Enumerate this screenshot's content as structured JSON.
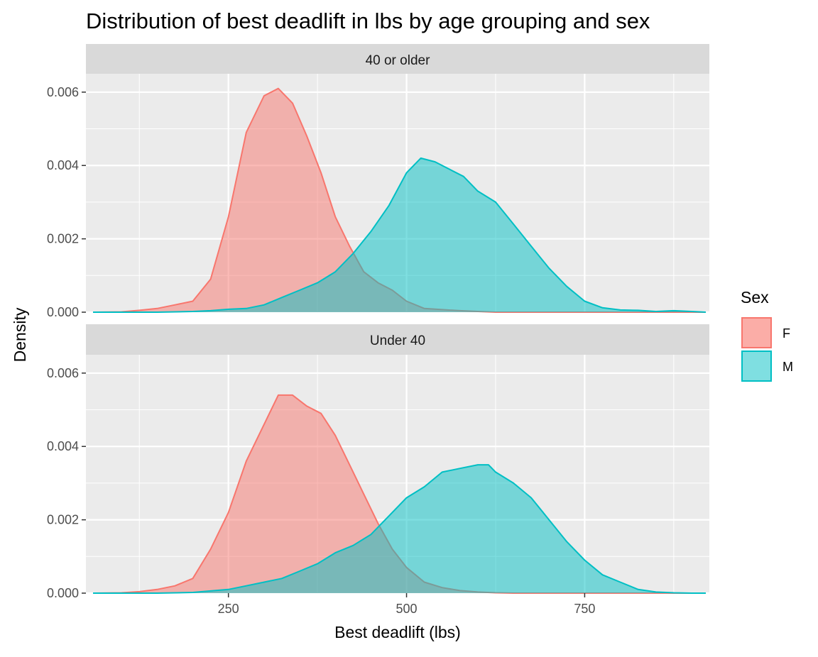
{
  "chart_data": {
    "type": "area",
    "chart_subtype": "faceted density",
    "title": "Distribution of best deadlift in lbs by age grouping and sex",
    "xlabel": "Best deadlift (lbs)",
    "ylabel": "Density",
    "xlim": [
      50,
      925
    ],
    "ylim": [
      0,
      0.0065
    ],
    "x_ticks": [
      250,
      500,
      750
    ],
    "x_tick_labels": [
      "250",
      "500",
      "750"
    ],
    "y_ticks": [
      0,
      0.002,
      0.004,
      0.006
    ],
    "y_tick_labels": [
      "0.000",
      "0.002",
      "0.004",
      "0.006"
    ],
    "grid": true,
    "legend": {
      "title": "Sex",
      "placement": "right",
      "entries": [
        {
          "label": "F",
          "color": "#F8766D"
        },
        {
          "label": "M",
          "color": "#00BFC4"
        }
      ]
    },
    "colors": {
      "F": "#F8766D",
      "M": "#00BFC4",
      "panel_bg": "#EBEBEB",
      "strip_bg": "#D9D9D9",
      "grid": "#FFFFFF"
    },
    "facets": [
      {
        "label": "40 or older",
        "series": [
          {
            "name": "F",
            "x": [
              60,
              100,
              125,
              150,
              175,
              200,
              225,
              250,
              275,
              300,
              320,
              340,
              360,
              380,
              400,
              420,
              440,
              460,
              480,
              500,
              525,
              550,
              575,
              600,
              625,
              650,
              700,
              750,
              800,
              850,
              900,
              920
            ],
            "y": [
              0,
              1e-05,
              5e-05,
              0.0001,
              0.0002,
              0.0003,
              0.0009,
              0.0026,
              0.0049,
              0.0059,
              0.0061,
              0.0057,
              0.0048,
              0.0038,
              0.0026,
              0.0018,
              0.0011,
              0.0008,
              0.0006,
              0.0003,
              0.0001,
              7e-05,
              4e-05,
              2e-05,
              0,
              0,
              0,
              0,
              0,
              0,
              0,
              0
            ]
          },
          {
            "name": "M",
            "x": [
              60,
              100,
              150,
              200,
              225,
              250,
              275,
              300,
              325,
              350,
              375,
              400,
              425,
              450,
              475,
              500,
              520,
              540,
              560,
              580,
              600,
              625,
              650,
              675,
              700,
              725,
              750,
              775,
              800,
              825,
              850,
              875,
              900,
              920
            ],
            "y": [
              0,
              0,
              0,
              2e-05,
              4e-05,
              8e-05,
              0.0001,
              0.0002,
              0.0004,
              0.0006,
              0.0008,
              0.0011,
              0.0016,
              0.0022,
              0.0029,
              0.0038,
              0.0042,
              0.0041,
              0.0039,
              0.0037,
              0.0033,
              0.003,
              0.0024,
              0.0018,
              0.0012,
              0.0007,
              0.0003,
              0.00012,
              6e-05,
              5e-05,
              2e-05,
              4e-05,
              2e-05,
              0
            ]
          }
        ]
      },
      {
        "label": "Under 40",
        "series": [
          {
            "name": "F",
            "x": [
              60,
              100,
              125,
              150,
              175,
              200,
              225,
              250,
              275,
              300,
              320,
              340,
              360,
              380,
              400,
              420,
              440,
              460,
              480,
              500,
              525,
              550,
              575,
              600,
              625,
              650,
              700,
              750,
              800,
              850,
              900,
              920
            ],
            "y": [
              0,
              1e-05,
              4e-05,
              0.0001,
              0.0002,
              0.0004,
              0.0012,
              0.0022,
              0.0036,
              0.0046,
              0.0054,
              0.0054,
              0.0051,
              0.0049,
              0.0043,
              0.0035,
              0.0027,
              0.0019,
              0.0012,
              0.0007,
              0.0003,
              0.00015,
              7e-05,
              3e-05,
              1e-05,
              0,
              0,
              0,
              0,
              0,
              0,
              0
            ]
          },
          {
            "name": "M",
            "x": [
              60,
              100,
              150,
              200,
              250,
              275,
              300,
              325,
              350,
              375,
              400,
              425,
              450,
              475,
              500,
              525,
              550,
              575,
              600,
              615,
              625,
              650,
              675,
              700,
              725,
              750,
              775,
              800,
              825,
              850,
              875,
              900,
              920
            ],
            "y": [
              0,
              0,
              0,
              2e-05,
              0.0001,
              0.0002,
              0.0003,
              0.0004,
              0.0006,
              0.0008,
              0.0011,
              0.0013,
              0.0016,
              0.0021,
              0.0026,
              0.0029,
              0.0033,
              0.0034,
              0.0035,
              0.0035,
              0.0033,
              0.003,
              0.0026,
              0.002,
              0.0014,
              0.0009,
              0.0005,
              0.0003,
              0.0001,
              3e-05,
              1e-05,
              0,
              0
            ]
          }
        ]
      }
    ]
  }
}
